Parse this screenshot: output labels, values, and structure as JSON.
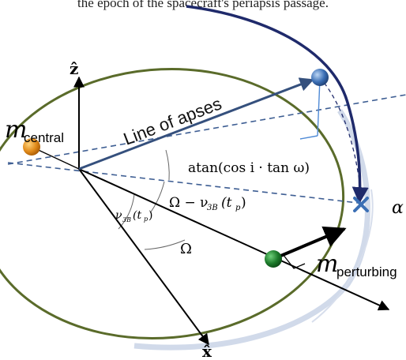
{
  "caption": "the epoch of the spacecraft's periapsis passage.",
  "labels": {
    "z_axis": "ẑ",
    "x_axis": "x̂",
    "line_of_apses": "Line of apses",
    "m_central_base": "m",
    "m_central_sub": "central",
    "m_perturbing_base": "m",
    "m_perturbing_sub": "perturbing",
    "atan_expr": "atan(cos i · tan ω)",
    "omega_minus_nu": "Ω − ν",
    "nu_sub": "3B",
    "tp_arg": "(t",
    "tp_sub": "p",
    "tp_close": ")",
    "nu_label": "ν",
    "capital_omega": "Ω",
    "alpha": "α"
  },
  "colors": {
    "ellipse_green": "#5a6b2a",
    "orbit_light": "#c9d3e6",
    "orbit_navy": "#1f2a6b",
    "axis_black": "#000000",
    "dashed_blue": "#3e5e93",
    "apse_arrow": "#35507d",
    "central_mass": "#e08a1a",
    "perturbing_mass": "#1c7a2a",
    "spacecraft": "#3b6fb5",
    "marker_x": "#3b6fb5"
  }
}
